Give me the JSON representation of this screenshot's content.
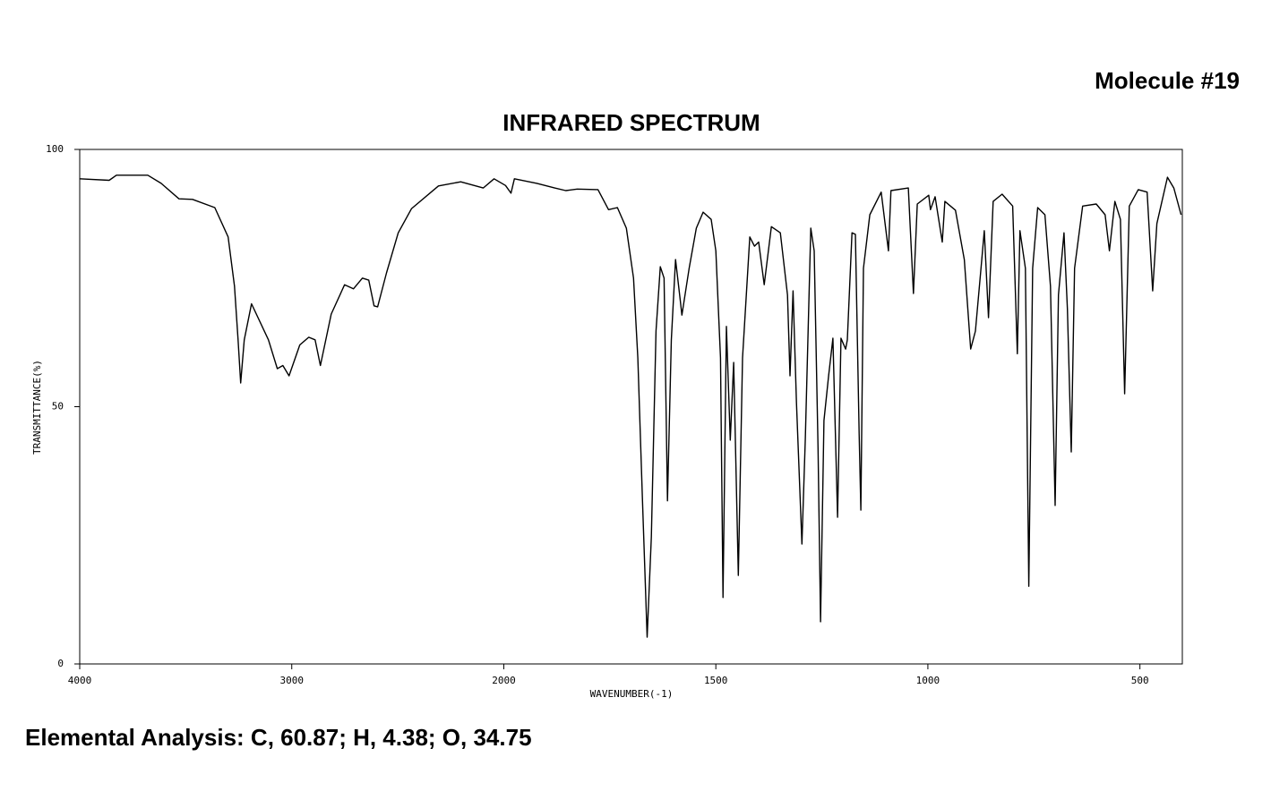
{
  "chart_data": {
    "type": "line",
    "header": "Molecule #19",
    "title": "INFRARED SPECTRUM",
    "xlabel": "WAVENUMBER(-1)",
    "ylabel": "TRANSMITTANCE(%)",
    "footer": "Elemental Analysis: C, 60.87; H, 4.38; O, 34.75",
    "xlim": [
      4000,
      400
    ],
    "x_scale_break": 2000,
    "xticks": [
      4000,
      3000,
      2000,
      1500,
      1000,
      500
    ],
    "ylim": [
      0,
      100
    ],
    "yticks": [
      0,
      50,
      100
    ],
    "color": "#000000",
    "x": [
      4000,
      3861,
      3827,
      3679,
      3616,
      3532,
      3468,
      3363,
      3300,
      3270,
      3253,
      3241,
      3224,
      3190,
      3110,
      3068,
      3042,
      3013,
      2962,
      2920,
      2890,
      2865,
      2814,
      2751,
      2709,
      2667,
      2637,
      2612,
      2595,
      2553,
      2498,
      2435,
      2308,
      2203,
      2097,
      2046,
      1996,
      1983,
      1975,
      1922,
      1880,
      1854,
      1827,
      1778,
      1753,
      1732,
      1711,
      1694,
      1684,
      1673,
      1662,
      1652,
      1641,
      1631,
      1622,
      1614,
      1605,
      1595,
      1584,
      1580,
      1563,
      1546,
      1530,
      1511,
      1500,
      1489,
      1483,
      1475,
      1466,
      1458,
      1447,
      1437,
      1420,
      1409,
      1399,
      1386,
      1369,
      1348,
      1331,
      1325,
      1318,
      1310,
      1297,
      1289,
      1276,
      1268,
      1259,
      1253,
      1245,
      1234,
      1224,
      1213,
      1205,
      1194,
      1190,
      1179,
      1171,
      1162,
      1158,
      1152,
      1137,
      1110,
      1093,
      1087,
      1046,
      1034,
      1025,
      998,
      994,
      983,
      966,
      960,
      935,
      914,
      899,
      888,
      873,
      867,
      857,
      846,
      825,
      800,
      789,
      783,
      770,
      762,
      753,
      741,
      724,
      711,
      700,
      692,
      679,
      671,
      662,
      654,
      635,
      603,
      582,
      572,
      559,
      546,
      536,
      525,
      504,
      483,
      470,
      460,
      435,
      420,
      403
    ],
    "values": [
      94.3,
      94,
      95,
      95,
      93.4,
      90.4,
      90.3,
      88.7,
      83,
      73.4,
      63,
      54.6,
      63,
      70,
      63,
      57.4,
      58,
      56,
      62,
      63.5,
      63,
      58,
      68,
      73.7,
      72.9,
      75,
      74.6,
      69.6,
      69.4,
      76,
      83.8,
      88.5,
      92.9,
      93.7,
      92.5,
      94.3,
      93,
      91.5,
      94.3,
      93.4,
      92.5,
      92,
      92.3,
      92.2,
      88.3,
      88.7,
      84.7,
      75,
      59.5,
      31.7,
      5.2,
      24.7,
      64.7,
      77.2,
      75,
      31.7,
      63,
      78.6,
      70.8,
      67.8,
      76.9,
      84.7,
      87.8,
      86.4,
      80.3,
      59.5,
      12.9,
      65.6,
      43.5,
      58.6,
      17.2,
      59.5,
      83,
      81.2,
      82,
      73.7,
      85,
      83.8,
      71.7,
      56,
      72.5,
      50.8,
      23.3,
      43.8,
      84.7,
      80.3,
      42,
      8.2,
      47.3,
      56,
      63.3,
      28.5,
      63.3,
      61.2,
      63,
      83.8,
      83.5,
      44.7,
      29.9,
      76.9,
      87.3,
      91.7,
      80.3,
      92,
      92.5,
      72,
      89.4,
      91.1,
      88.3,
      90.8,
      82,
      89.9,
      88.2,
      78.6,
      61.2,
      64.7,
      78.6,
      84.2,
      67.3,
      89.9,
      91.3,
      89,
      60.3,
      84.2,
      76.9,
      15.1,
      76.9,
      88.7,
      87.3,
      73.4,
      30.8,
      71.7,
      83.8,
      69,
      41.2,
      76.9,
      89,
      89.4,
      87.3,
      80.3,
      89.9,
      86.4,
      52.5,
      89,
      92.2,
      91.7,
      72.5,
      85.6,
      94.6,
      92.5,
      87.3
    ]
  }
}
